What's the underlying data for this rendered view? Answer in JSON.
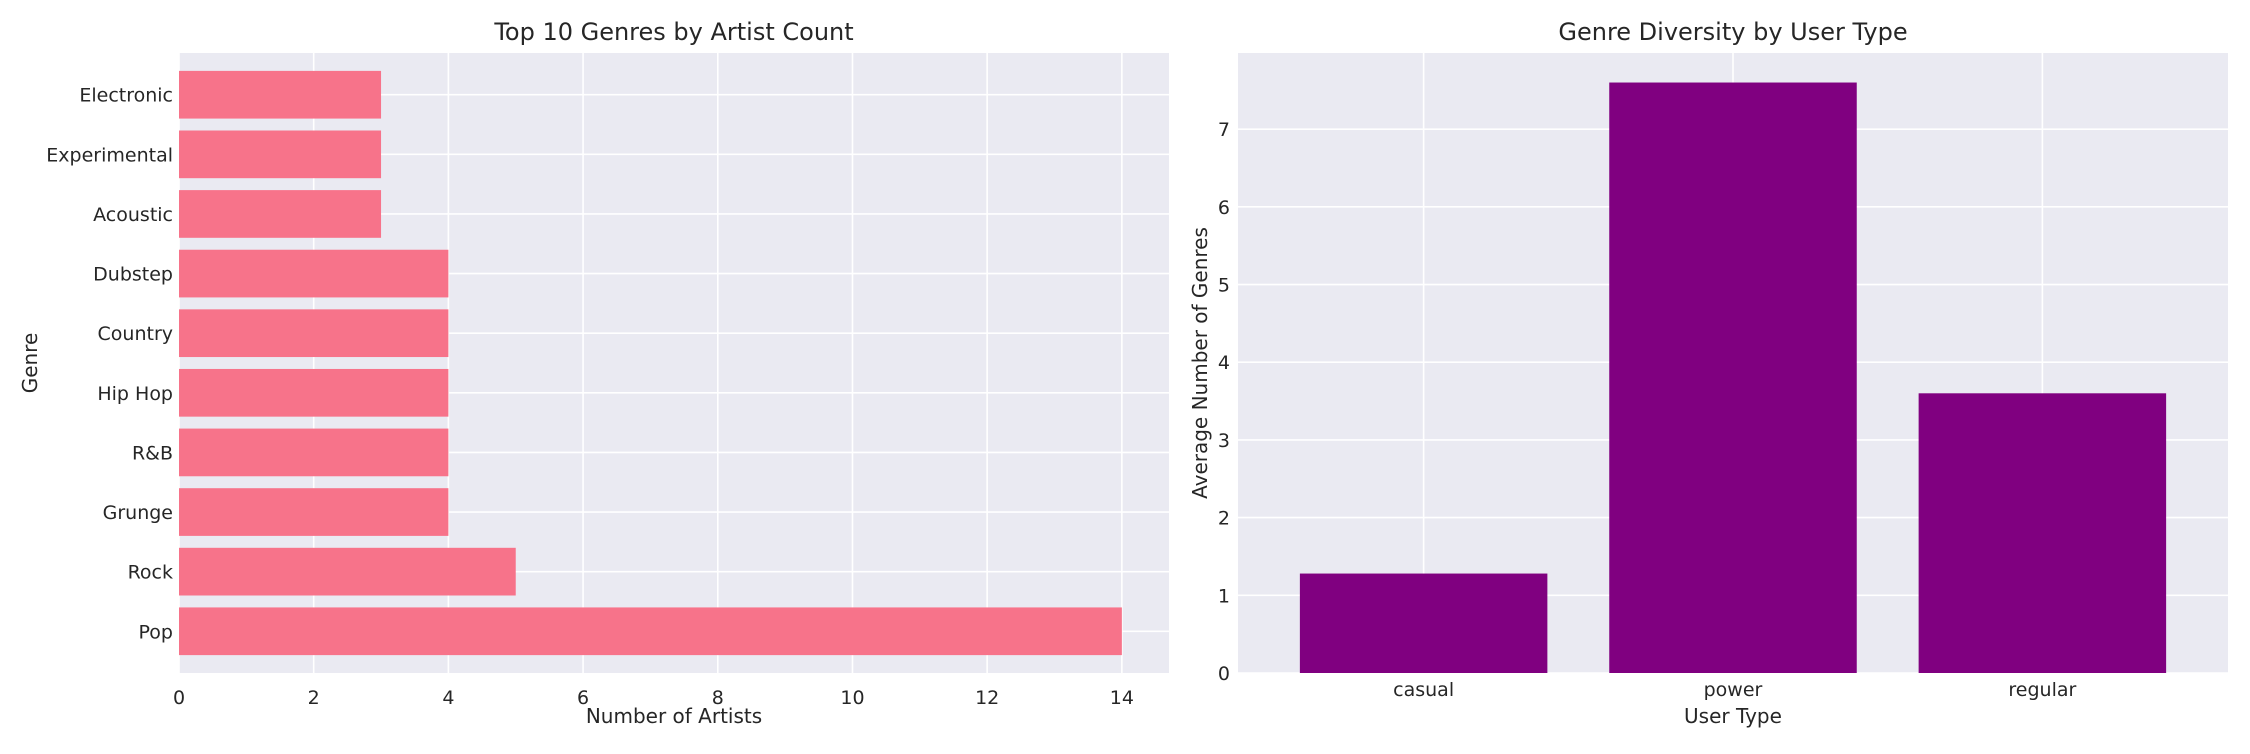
{
  "colors": {
    "bar_left": "#f7738a",
    "bar_right": "#800080",
    "plot_bg": "#eaeaf2",
    "grid": "#ffffff"
  },
  "chart_data": [
    {
      "type": "bar",
      "orientation": "horizontal",
      "title": "Top 10 Genres by Artist Count",
      "xlabel": "Number of Artists",
      "ylabel": "Genre",
      "categories": [
        "Pop",
        "Rock",
        "Grunge",
        "R&B",
        "Hip Hop",
        "Country",
        "Dubstep",
        "Acoustic",
        "Experimental",
        "Electronic"
      ],
      "values": [
        14,
        5,
        4,
        4,
        4,
        4,
        4,
        3,
        3,
        3
      ],
      "xlim": [
        0,
        14.7
      ],
      "xticks": [
        "0",
        "2",
        "4",
        "6",
        "8",
        "10",
        "12",
        "14"
      ],
      "grid": true
    },
    {
      "type": "bar",
      "orientation": "vertical",
      "title": "Genre Diversity by User Type",
      "xlabel": "User Type",
      "ylabel": "Average Number of Genres",
      "categories": [
        "casual",
        "power",
        "regular"
      ],
      "values": [
        1.28,
        7.6,
        3.6
      ],
      "ylim": [
        0,
        7.98
      ],
      "yticks": [
        "0",
        "1",
        "2",
        "3",
        "4",
        "5",
        "6",
        "7"
      ],
      "grid": true
    }
  ]
}
